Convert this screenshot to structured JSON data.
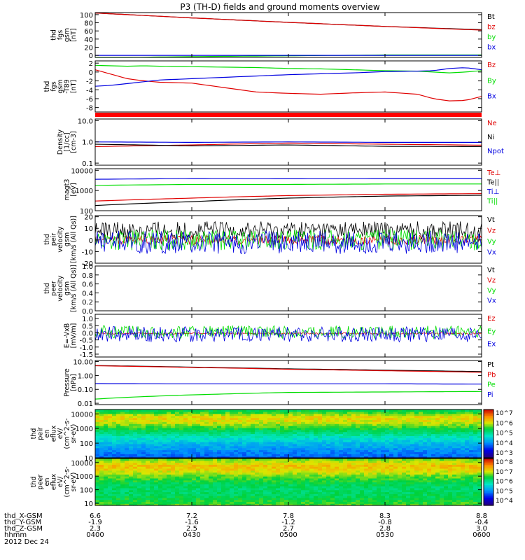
{
  "title": "P3 (TH-D) fields and ground moments overview",
  "date": "2012 Dec 24",
  "time_axis": {
    "rows": [
      {
        "label": "thd_X-GSM",
        "values": [
          "6.6",
          "7.2",
          "7.8",
          "8.3",
          "8.8"
        ]
      },
      {
        "label": "thd_Y-GSM",
        "values": [
          "-1.9",
          "-1.6",
          "-1.2",
          "-0.8",
          "-0.4"
        ]
      },
      {
        "label": "thd_Z-GSM",
        "values": [
          "2.3",
          "2.5",
          "2.7",
          "2.8",
          "3.0"
        ]
      },
      {
        "label": "hhmm",
        "values": [
          "0400",
          "0430",
          "0500",
          "0530",
          "0600"
        ]
      }
    ]
  },
  "colors": {
    "black": "#000000",
    "red": "#e00000",
    "green": "#00dd00",
    "blue": "#0000e0"
  },
  "chart_data": [
    {
      "type": "line",
      "ylabel": [
        "thd",
        "fgs",
        "gsm",
        "[nT]"
      ],
      "scale": "linear",
      "ylim": [
        -5,
        105
      ],
      "yticks": [
        {
          "v": 100,
          "t": "100"
        },
        {
          "v": 80,
          "t": "80"
        },
        {
          "v": 60,
          "t": "60"
        },
        {
          "v": 40,
          "t": "40"
        },
        {
          "v": 20,
          "t": "20"
        },
        {
          "v": 0,
          "t": "0"
        }
      ],
      "x": [
        0,
        30,
        60,
        90,
        120
      ],
      "series": [
        {
          "name": "Bt",
          "color": "black",
          "values": [
            104,
            92,
            81,
            71,
            63
          ]
        },
        {
          "name": "bz",
          "color": "red",
          "values": [
            104,
            92,
            81,
            71,
            62
          ]
        },
        {
          "name": "by",
          "color": "green",
          "values": [
            -6,
            -3,
            -1,
            1,
            1
          ]
        },
        {
          "name": "bx",
          "color": "blue",
          "values": [
            0,
            0,
            0,
            0,
            0
          ]
        }
      ]
    },
    {
      "type": "line",
      "ylabel": [
        "thd",
        "fgs",
        "gsm",
        "-T89",
        "[nT]"
      ],
      "scale": "linear",
      "ylim": [
        -9,
        2.5
      ],
      "yticks": [
        {
          "v": 2,
          "t": "2"
        },
        {
          "v": 0,
          "t": "0"
        },
        {
          "v": -2,
          "t": "-2"
        },
        {
          "v": -4,
          "t": "-4"
        },
        {
          "v": -6,
          "t": "-6"
        },
        {
          "v": -8,
          "t": "-8"
        }
      ],
      "x": [
        0,
        5,
        10,
        15,
        20,
        30,
        40,
        50,
        60,
        70,
        80,
        90,
        100,
        105,
        110,
        115,
        120
      ],
      "series": [
        {
          "name": "Bz",
          "color": "red",
          "values": [
            0.5,
            -0.5,
            -1.5,
            -2,
            -2.3,
            -2.5,
            -3.5,
            -4.5,
            -4.8,
            -5,
            -4.7,
            -4.5,
            -5,
            -6,
            -6.5,
            -6.4,
            -5.5
          ]
        },
        {
          "name": "By",
          "color": "green",
          "values": [
            1.5,
            1.4,
            1.3,
            1.4,
            1.3,
            1.2,
            1.1,
            1.0,
            0.8,
            0.7,
            0.5,
            0.3,
            0.2,
            0.0,
            -0.2,
            0.0,
            0.3
          ]
        },
        {
          "name": "Bx",
          "color": "blue",
          "values": [
            -3.2,
            -3,
            -2.6,
            -2.2,
            -1.8,
            -1.5,
            -1.2,
            -0.9,
            -0.6,
            -0.4,
            -0.2,
            0.1,
            0.2,
            0.3,
            0.8,
            1.0,
            0.5
          ]
        }
      ]
    },
    {
      "type": "line",
      "ylabel": [
        "Density",
        "[1/cc]",
        "[cm-3]"
      ],
      "scale": "log",
      "ylim": [
        0.08,
        12
      ],
      "yticks": [
        {
          "v": 10,
          "t": "10.0"
        },
        {
          "v": 1,
          "t": "1.0"
        },
        {
          "v": 0.1,
          "t": "0.1"
        }
      ],
      "x": [
        0,
        30,
        60,
        90,
        120
      ],
      "series": [
        {
          "name": "Ne",
          "color": "red",
          "values": [
            0.6,
            0.72,
            0.88,
            0.78,
            0.7
          ]
        },
        {
          "name": "Ni",
          "color": "black",
          "values": [
            0.78,
            0.65,
            0.72,
            0.62,
            0.6
          ]
        },
        {
          "name": "Npot",
          "color": "blue",
          "values": [
            1.0,
            0.95,
            1.0,
            0.95,
            0.95
          ]
        }
      ]
    },
    {
      "type": "line",
      "ylabel": [
        "magt3",
        "[eV]"
      ],
      "scale": "log",
      "ylim": [
        100,
        12000
      ],
      "yticks": [
        {
          "v": 10000,
          "t": "10000"
        },
        {
          "v": 1000,
          "t": "1000"
        },
        {
          "v": 100,
          "t": "100"
        }
      ],
      "x": [
        0,
        30,
        60,
        90,
        120
      ],
      "series": [
        {
          "name": "Te⊥",
          "color": "red",
          "values": [
            300,
            420,
            560,
            650,
            700
          ]
        },
        {
          "name": "Te||",
          "color": "black",
          "values": [
            180,
            280,
            420,
            530,
            580
          ]
        },
        {
          "name": "Ti⊥",
          "color": "blue",
          "values": [
            3600,
            3900,
            3800,
            3900,
            3900
          ]
        },
        {
          "name": "Ti||",
          "color": "green",
          "values": [
            1800,
            2000,
            2000,
            2100,
            2100
          ]
        }
      ]
    },
    {
      "type": "line",
      "ylabel": [
        "thd",
        "peir",
        "velocity",
        "gsm",
        "[km/s (All Qs)]"
      ],
      "scale": "linear",
      "ylim": [
        -20,
        21
      ],
      "yticks": [
        {
          "v": 20,
          "t": "20"
        },
        {
          "v": 10,
          "t": "10"
        },
        {
          "v": 0,
          "t": "0"
        },
        {
          "v": -10,
          "t": "-10"
        },
        {
          "v": -20,
          "t": "-20"
        }
      ],
      "x": [
        0,
        120
      ],
      "noise": true,
      "series": [
        {
          "name": "Vt",
          "color": "black",
          "values": [
            8,
            8
          ],
          "amp": 8
        },
        {
          "name": "Vz",
          "color": "red",
          "values": [
            0,
            0
          ],
          "amp": 4
        },
        {
          "name": "Vy",
          "color": "green",
          "values": [
            0,
            0
          ],
          "amp": 9
        },
        {
          "name": "Vx",
          "color": "blue",
          "values": [
            -2,
            -2
          ],
          "amp": 10
        }
      ]
    },
    {
      "type": "line",
      "ylabel": [
        "thd",
        "peer",
        "velocity",
        "gsm",
        "[km/s (All Qs)]"
      ],
      "scale": "linear",
      "ylim": [
        0,
        1
      ],
      "yticks": [
        {
          "v": 1.0,
          "t": "1.0"
        },
        {
          "v": 0.8,
          "t": "0.8"
        },
        {
          "v": 0.6,
          "t": "0.6"
        },
        {
          "v": 0.4,
          "t": "0.4"
        },
        {
          "v": 0.2,
          "t": "0.2"
        },
        {
          "v": 0.0,
          "t": "0.0"
        }
      ],
      "x": [],
      "series": [
        {
          "name": "Vt",
          "color": "black",
          "values": []
        },
        {
          "name": "Vz",
          "color": "red",
          "values": []
        },
        {
          "name": "Vy",
          "color": "green",
          "values": []
        },
        {
          "name": "Vx",
          "color": "blue",
          "values": []
        }
      ]
    },
    {
      "type": "line",
      "ylabel": [
        "E=-VxB",
        "[mV/m]"
      ],
      "scale": "linear",
      "ylim": [
        -1.7,
        1.3
      ],
      "yticks": [
        {
          "v": 1.0,
          "t": "1.0"
        },
        {
          "v": 0.5,
          "t": "0.5"
        },
        {
          "v": 0,
          "t": "0.0"
        },
        {
          "v": -0.5,
          "t": "-0.5"
        },
        {
          "v": -1.0,
          "t": "-1.0"
        },
        {
          "v": -1.5,
          "t": "-1.5"
        }
      ],
      "x": [
        0,
        120
      ],
      "noise": true,
      "series": [
        {
          "name": "Ez",
          "color": "red",
          "values": [
            -0.05,
            -0.05
          ],
          "amp": 0.06
        },
        {
          "name": "Ey",
          "color": "green",
          "values": [
            0.05,
            0.05
          ],
          "amp": 0.45
        },
        {
          "name": "Ex",
          "color": "blue",
          "values": [
            -0.1,
            -0.1
          ],
          "amp": 0.55
        }
      ]
    },
    {
      "type": "line",
      "ylabel": [
        "Pressure",
        "[nPa]"
      ],
      "scale": "log",
      "ylim": [
        0.008,
        12
      ],
      "yticks": [
        {
          "v": 10,
          "t": "10.00"
        },
        {
          "v": 1,
          "t": "1.00"
        },
        {
          "v": 0.1,
          "t": "0.10"
        },
        {
          "v": 0.01,
          "t": "0.01"
        }
      ],
      "x": [
        0,
        30,
        60,
        90,
        120
      ],
      "series": [
        {
          "name": "Pt",
          "color": "black",
          "values": [
            5.2,
            4.0,
            3.0,
            2.4,
            1.9
          ]
        },
        {
          "name": "Pb",
          "color": "red",
          "values": [
            5.0,
            3.8,
            2.8,
            2.2,
            1.7
          ]
        },
        {
          "name": "Pe",
          "color": "green",
          "values": [
            0.02,
            0.04,
            0.06,
            0.065,
            0.07
          ]
        },
        {
          "name": "Pi",
          "color": "blue",
          "values": [
            0.26,
            0.25,
            0.25,
            0.25,
            0.24
          ]
        }
      ]
    },
    {
      "type": "heatmap",
      "ylabel": [
        "thd",
        "peir",
        "en",
        "eflux",
        "eV/",
        "(cm^2-s-",
        "sr-eV)"
      ],
      "scale": "log",
      "ylim": [
        10,
        20000
      ],
      "yticks": [
        {
          "v": 10000,
          "t": "10000"
        },
        {
          "v": 1000,
          "t": "1000"
        },
        {
          "v": 100,
          "t": "100"
        },
        {
          "v": 10,
          "t": "10"
        }
      ],
      "colorbar": {
        "min_exp": 3,
        "max_exp": 7,
        "labels": [
          "10^7",
          "10^6",
          "10^5",
          "10^4",
          "10^3"
        ]
      },
      "energy_profile": [
        [
          10,
          4.0
        ],
        [
          30,
          4.2
        ],
        [
          100,
          4.5
        ],
        [
          300,
          4.9
        ],
        [
          1000,
          5.4
        ],
        [
          3000,
          5.9
        ],
        [
          6000,
          6.0
        ],
        [
          10000,
          5.7
        ],
        [
          20000,
          5.2
        ]
      ]
    },
    {
      "type": "heatmap",
      "ylabel": [
        "thd",
        "peer",
        "en",
        "eflux",
        "eV/",
        "(cm^2-s-",
        "sr-eV)"
      ],
      "scale": "log",
      "ylim": [
        7,
        20000
      ],
      "yticks": [
        {
          "v": 10000,
          "t": "10000"
        },
        {
          "v": 1000,
          "t": "1000"
        },
        {
          "v": 100,
          "t": "100"
        },
        {
          "v": 10,
          "t": "10"
        }
      ],
      "colorbar": {
        "min_exp": 4,
        "max_exp": 8,
        "labels": [
          "10^8",
          "10^7",
          "10^6",
          "10^5",
          "10^4"
        ]
      },
      "energy_profile": [
        [
          7,
          6.6
        ],
        [
          10,
          6.5
        ],
        [
          30,
          6.3
        ],
        [
          100,
          6.2
        ],
        [
          300,
          6.3
        ],
        [
          1000,
          6.6
        ],
        [
          3000,
          7.0
        ],
        [
          6000,
          7.1
        ],
        [
          10000,
          6.9
        ],
        [
          20000,
          6.6
        ]
      ]
    }
  ]
}
